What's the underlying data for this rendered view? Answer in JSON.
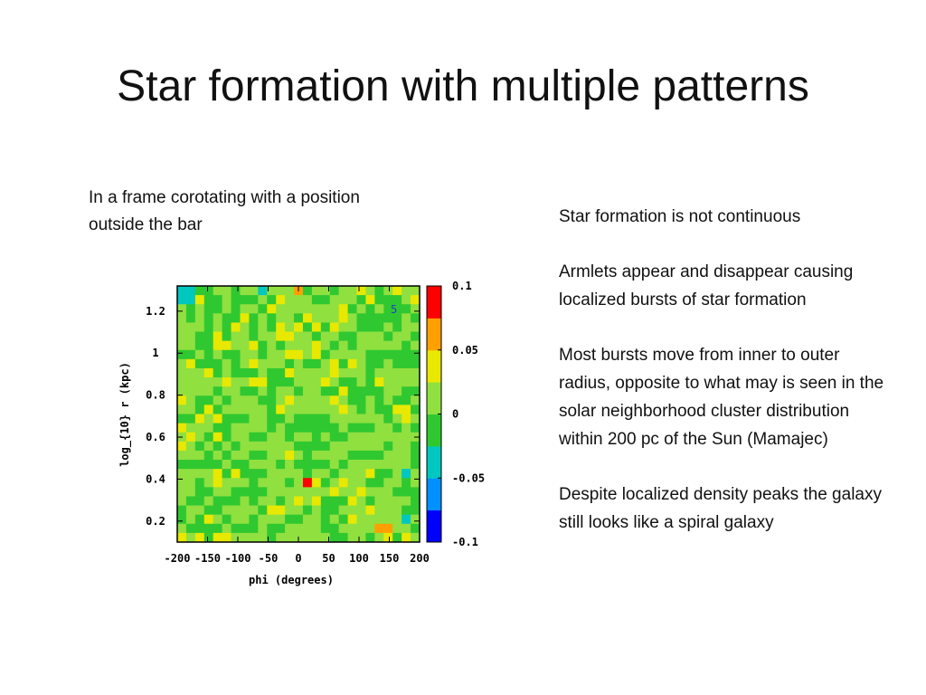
{
  "slide": {
    "title": "Star formation with multiple patterns",
    "caption": "In a frame corotating with a position outside the bar",
    "bullets": [
      "Star formation is not continuous",
      "Armlets appear and disappear causing localized bursts of star formation",
      "Most bursts move from inner to outer radius, opposite to what may is seen in the solar neighborhood cluster distribution within 200 pc of the Sun (Mamajec)",
      "Despite localized density peaks the galaxy still looks like a spiral galaxy"
    ]
  },
  "chart_data": {
    "type": "heatmap",
    "xlabel": "phi (degrees)",
    "ylabel": "log_{10} r  (kpc)",
    "xlim": [
      -200,
      200
    ],
    "ylim": [
      0.1,
      1.32
    ],
    "xticks": [
      -200,
      -150,
      -100,
      -50,
      0,
      50,
      100,
      150,
      200
    ],
    "xtick_labels": [
      "-200",
      "-150",
      "-100",
      "-50",
      "0",
      "50",
      "100",
      "150",
      "200"
    ],
    "yticks": [
      0.2,
      0.4,
      0.6,
      0.8,
      1,
      1.2
    ],
    "ytick_labels": [
      "0.2",
      "0.4",
      "0.6",
      "0.8",
      "1",
      "1.2"
    ],
    "grid": false,
    "colorbar": {
      "range": [
        -0.1,
        0.1
      ],
      "ticks": [
        0.1,
        0.05,
        0,
        -0.05,
        -0.1
      ],
      "tick_labels": [
        "0.1",
        "0.05",
        "0",
        "-0.05",
        "-0.1"
      ],
      "colors": [
        "#0000ff",
        "#0090ff",
        "#00c8c0",
        "#30c830",
        "#90e040",
        "#e8e800",
        "#ffa000",
        "#ff0000"
      ]
    },
    "panel_label": "5",
    "nx": 27,
    "ny": 28,
    "hotspots": [
      {
        "phi": 12,
        "logr": 0.38,
        "value": 0.08
      },
      {
        "phi": 0,
        "logr": 1.3,
        "value": 0.07
      },
      {
        "phi": 140,
        "logr": 0.18,
        "value": 0.05
      },
      {
        "phi": -105,
        "logr": 1.12,
        "value": 0.045
      },
      {
        "phi": 60,
        "logr": 0.78,
        "value": 0.04
      }
    ],
    "coldspots": [
      {
        "phi": 172,
        "logr": 0.42,
        "value": -0.05
      },
      {
        "phi": 172,
        "logr": 0.22,
        "value": -0.05
      },
      {
        "phi": -185,
        "logr": 1.28,
        "value": -0.04
      },
      {
        "phi": -60,
        "logr": 1.3,
        "value": -0.03
      }
    ]
  }
}
